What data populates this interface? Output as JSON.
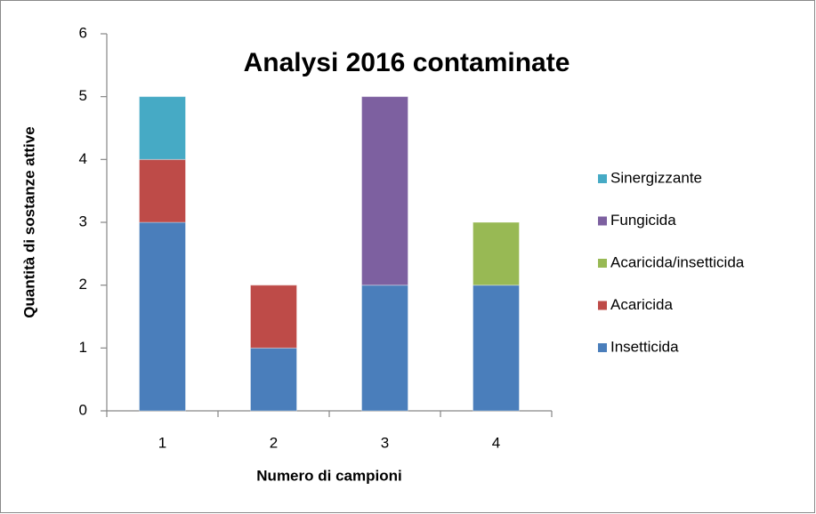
{
  "chart_data": {
    "type": "stacked_bar",
    "title": "Analysi 2016 contaminate",
    "x_label": "Numero di campioni",
    "y_label": "Quantità di sostanze attive",
    "categories": [
      "1",
      "2",
      "3",
      "4"
    ],
    "series": [
      {
        "name": "Insetticida",
        "color": "#4a7ebb",
        "values": [
          3,
          1,
          2,
          2
        ]
      },
      {
        "name": "Acaricida",
        "color": "#be4b48",
        "values": [
          1,
          1,
          0,
          0
        ]
      },
      {
        "name": "Acaricida/insetticida",
        "color": "#98b954",
        "values": [
          0,
          0,
          0,
          1
        ]
      },
      {
        "name": "Fungicida",
        "color": "#7d60a0",
        "values": [
          0,
          0,
          3,
          0
        ]
      },
      {
        "name": "Sinergizzante",
        "color": "#46aac5",
        "values": [
          1,
          0,
          0,
          0
        ]
      }
    ],
    "ylim": [
      0,
      6
    ],
    "yticks": [
      0,
      1,
      2,
      3,
      4,
      5,
      6
    ],
    "grid": false,
    "legend": "right"
  }
}
